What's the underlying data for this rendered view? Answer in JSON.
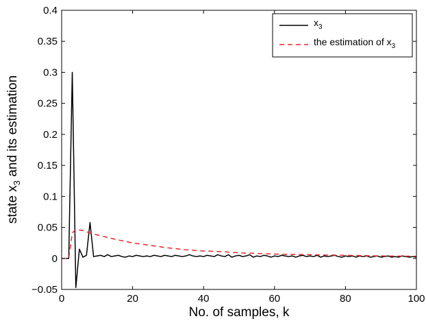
{
  "chart_data": {
    "type": "line",
    "xlabel": "No. of samples, k",
    "ylabel": {
      "main": "state x",
      "sub": "3",
      "rest": " and its estimation"
    },
    "xlim": [
      0,
      100
    ],
    "ylim": [
      -0.05,
      0.4
    ],
    "xticks": [
      0,
      20,
      40,
      60,
      80,
      100
    ],
    "xtick_labels": [
      "0",
      "20",
      "40",
      "60",
      "80",
      "100"
    ],
    "yticks": [
      -0.05,
      0,
      0.05,
      0.1,
      0.15,
      0.2,
      0.25,
      0.3,
      0.35,
      0.4
    ],
    "ytick_labels": [
      "−0.05",
      "0",
      "0.05",
      "0.1",
      "0.15",
      "0.2",
      "0.25",
      "0.3",
      "0.35",
      "0.4"
    ],
    "grid": false,
    "legend_position": "top-right",
    "series": [
      {
        "name": "x",
        "name_sub": "3",
        "color": "#000000",
        "dash": "solid",
        "x": [
          0,
          1,
          2,
          3,
          4,
          5,
          6,
          7,
          8,
          9,
          10,
          11,
          12,
          13,
          14,
          15,
          16,
          17,
          18,
          19,
          20,
          21,
          22,
          23,
          24,
          25,
          26,
          27,
          28,
          29,
          30,
          31,
          32,
          33,
          34,
          35,
          36,
          37,
          38,
          39,
          40,
          41,
          42,
          43,
          44,
          45,
          46,
          47,
          48,
          49,
          50,
          51,
          52,
          53,
          54,
          55,
          56,
          57,
          58,
          59,
          60,
          61,
          62,
          63,
          64,
          65,
          66,
          67,
          68,
          69,
          70,
          71,
          72,
          73,
          74,
          75,
          76,
          77,
          78,
          79,
          80,
          81,
          82,
          83,
          84,
          85,
          86,
          87,
          88,
          89,
          90,
          91,
          92,
          93,
          94,
          95,
          96,
          97,
          98,
          99,
          100
        ],
        "y": [
          0,
          0,
          0,
          0.3,
          -0.047,
          0.015,
          0.002,
          0.005,
          0.058,
          0.003,
          0.004,
          0.005,
          0.003,
          0.006,
          0.003,
          0.004,
          0.005,
          0.003,
          0.002,
          0.004,
          0.003,
          0.005,
          0.004,
          0.003,
          0.004,
          0.003,
          0.005,
          0.004,
          0.003,
          0.005,
          0.004,
          0.003,
          0.005,
          0.004,
          0.003,
          0.004,
          0.006,
          0.004,
          0.003,
          0.004,
          0.003,
          0.005,
          0.004,
          0.003,
          0.006,
          0.004,
          0.003,
          0.006,
          0.002,
          0.004,
          0.005,
          0.003,
          0.004,
          0.006,
          0.002,
          0.004,
          0.003,
          0.005,
          0.004,
          0.002,
          0.004,
          0.003,
          0.005,
          0.004,
          0.003,
          0.004,
          0.002,
          0.004,
          0.005,
          0.003,
          0.004,
          0.003,
          0.005,
          0.002,
          0.004,
          0.003,
          0.004,
          0.005,
          0.003,
          0.002,
          0.004,
          0.003,
          0.004,
          0.002,
          0.004,
          0.003,
          0.004,
          0.002,
          0.003,
          0.004,
          0.002,
          0.003,
          0.004,
          0.002,
          0.003,
          0.002,
          0.004,
          0.003,
          0.002,
          0.003,
          0.002
        ]
      },
      {
        "name": "the estimation of x",
        "name_sub": "3",
        "color": "#e8262b",
        "dash": "dashed",
        "x": [
          0,
          2,
          3,
          4,
          6,
          8,
          10,
          15,
          20,
          25,
          30,
          35,
          40,
          45,
          50,
          55,
          60,
          70,
          80,
          90,
          100
        ],
        "y": [
          0,
          0,
          0.041,
          0.047,
          0.045,
          0.041,
          0.038,
          0.031,
          0.025,
          0.021,
          0.017,
          0.014,
          0.012,
          0.011,
          0.009,
          0.008,
          0.007,
          0.006,
          0.005,
          0.004,
          0.0035
        ]
      }
    ]
  }
}
